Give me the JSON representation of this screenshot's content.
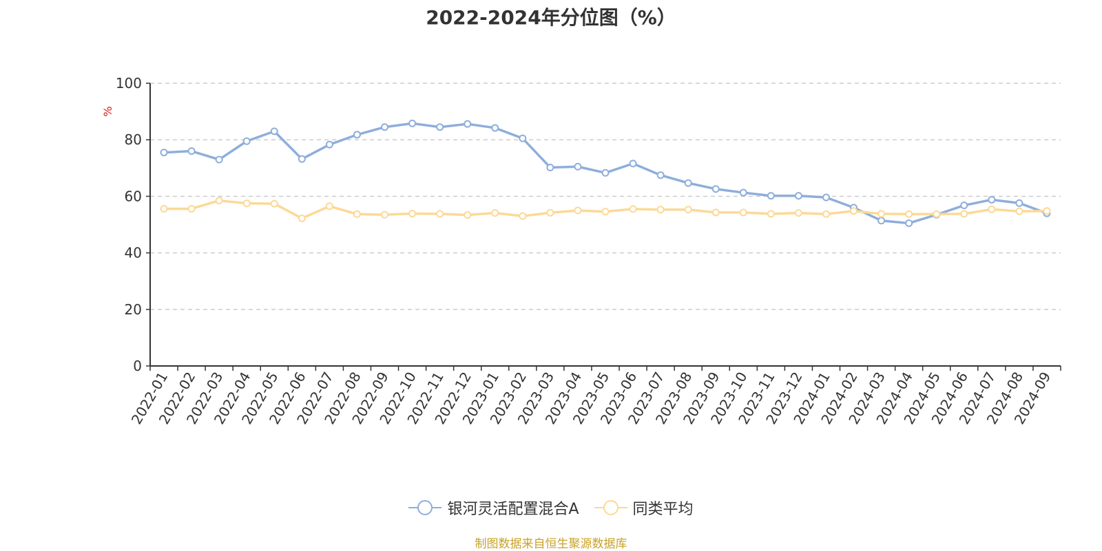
{
  "title": "2022-2024年分位图（%）",
  "source_note": "制图数据来自恒生聚源数据库",
  "colors": {
    "series_1": "#8eaedb",
    "series_2": "#fcd996",
    "axis": "#333333",
    "grid": "#cccccc",
    "unit": "#e8140a",
    "source": "#c9a227"
  },
  "chart_data": {
    "type": "line",
    "title": "2022-2024年分位图（%）",
    "ylabel": "%",
    "xlabel": "",
    "ylim": [
      0,
      100
    ],
    "yticks": [
      0,
      20,
      40,
      60,
      80,
      100
    ],
    "grid": true,
    "legend_position": "bottom",
    "categories": [
      "2022-01",
      "2022-02",
      "2022-03",
      "2022-04",
      "2022-05",
      "2022-06",
      "2022-07",
      "2022-08",
      "2022-09",
      "2022-10",
      "2022-11",
      "2022-12",
      "2023-01",
      "2023-02",
      "2023-03",
      "2023-04",
      "2023-05",
      "2023-06",
      "2023-07",
      "2023-08",
      "2023-09",
      "2023-10",
      "2023-11",
      "2023-12",
      "2024-01",
      "2024-02",
      "2024-03",
      "2024-04",
      "2024-05",
      "2024-06",
      "2024-07",
      "2024-08",
      "2024-09"
    ],
    "series": [
      {
        "name": "银河灵活配置混合A",
        "values": [
          75.5,
          76,
          73,
          79.5,
          83,
          73.2,
          78.3,
          81.8,
          84.5,
          85.8,
          84.5,
          85.6,
          84.2,
          80.5,
          70.2,
          70.5,
          68.3,
          71.6,
          67.5,
          64.7,
          62.6,
          61.3,
          60.2,
          60.2,
          59.6,
          56.0,
          51.4,
          50.5,
          53.5,
          56.8,
          58.8,
          57.6,
          54.0
        ]
      },
      {
        "name": "同类平均",
        "values": [
          55.6,
          55.6,
          58.5,
          57.5,
          57.4,
          52.2,
          56.5,
          53.7,
          53.5,
          53.9,
          53.8,
          53.4,
          54.1,
          53.0,
          54.2,
          55.0,
          54.6,
          55.5,
          55.3,
          55.3,
          54.3,
          54.3,
          53.8,
          54.1,
          53.7,
          54.8,
          53.8,
          53.7,
          53.7,
          53.8,
          55.4,
          54.7,
          54.8
        ]
      }
    ]
  }
}
